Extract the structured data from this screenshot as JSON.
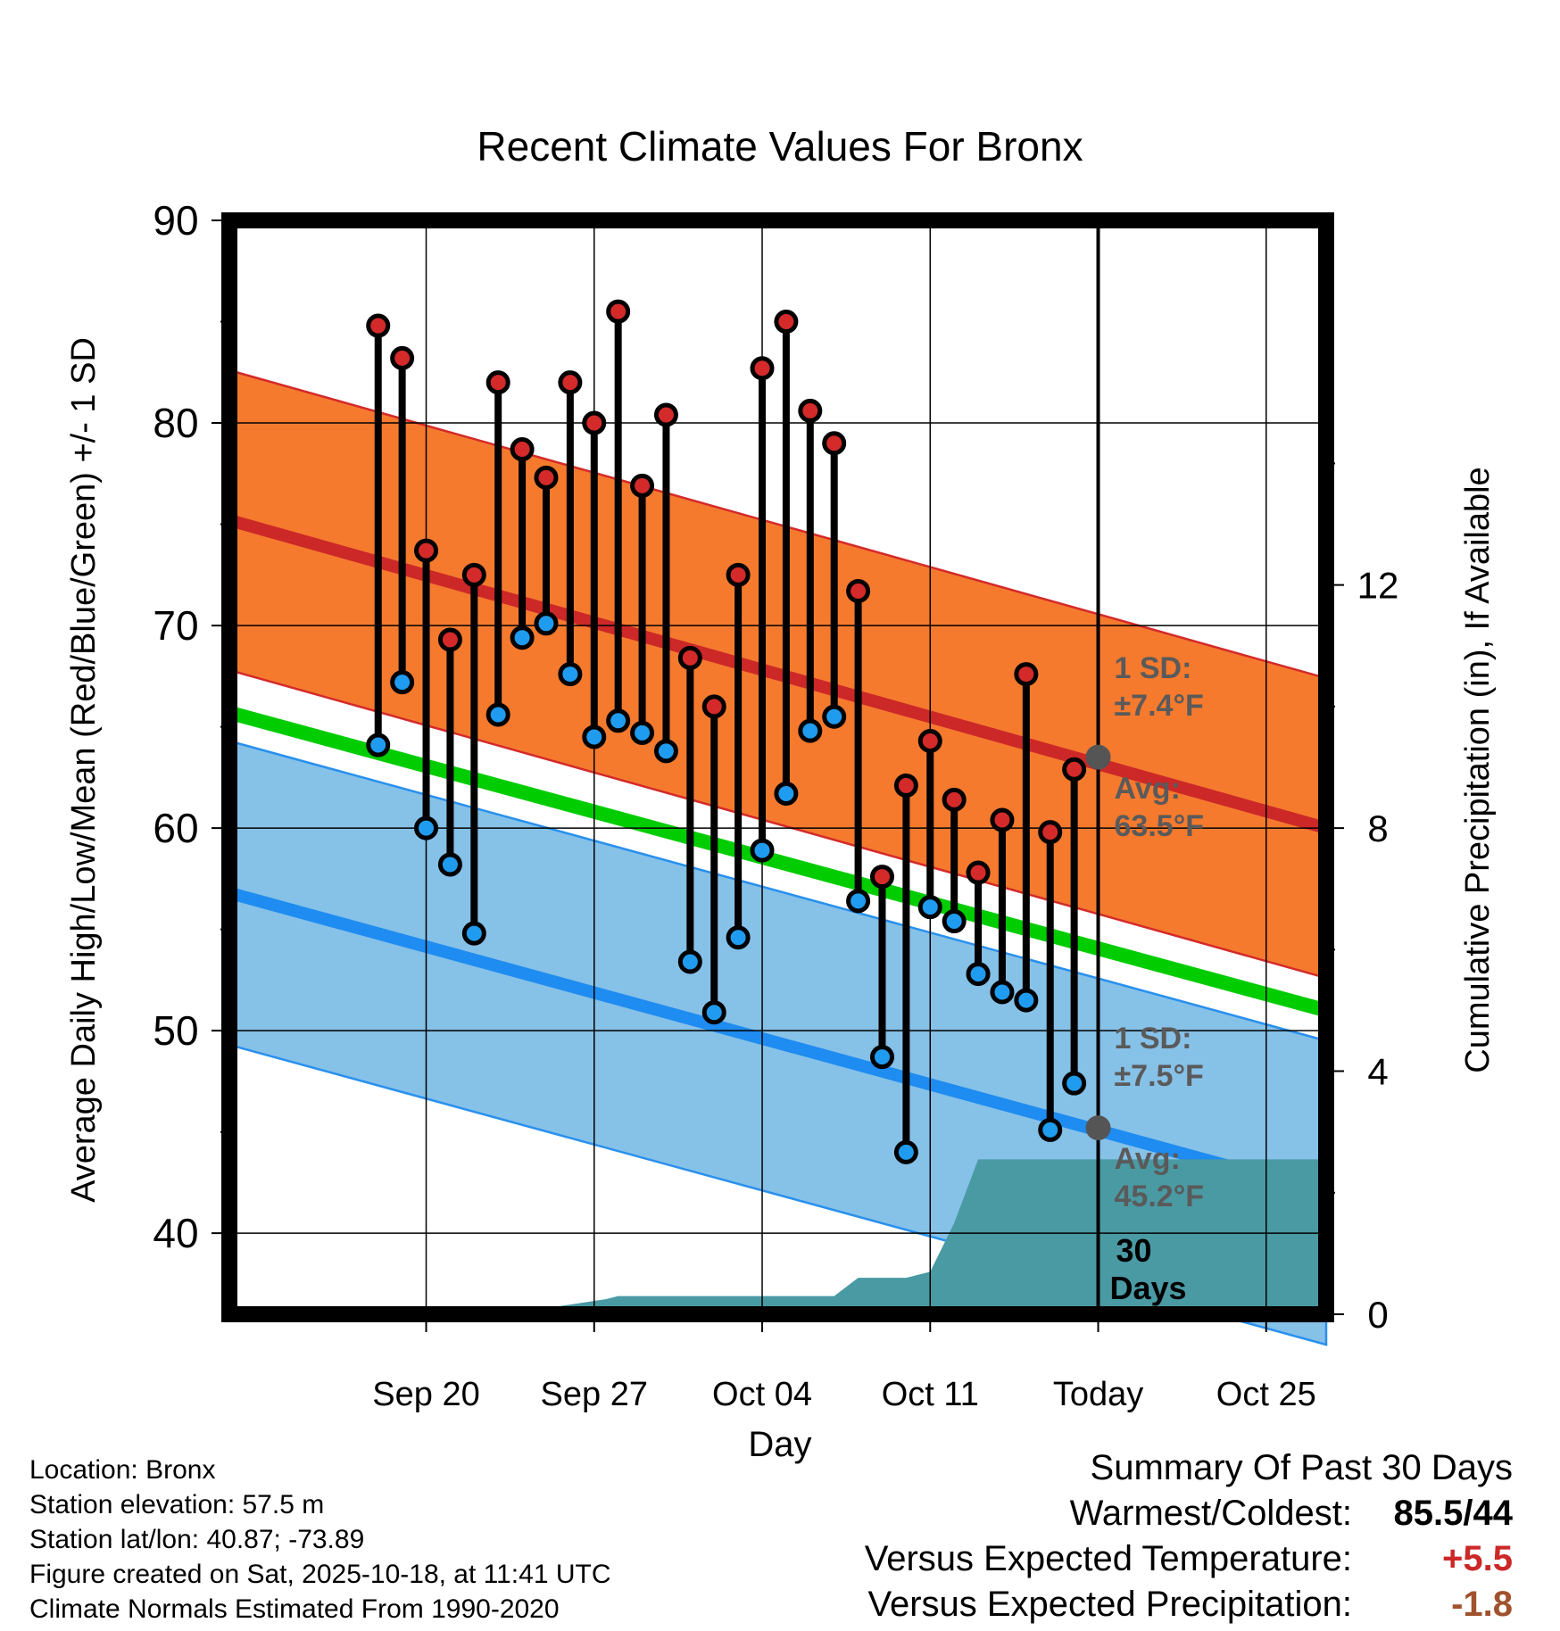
{
  "chart_data": {
    "type": "line",
    "title": "Recent Climate Values For Bronx",
    "xlabel": "Day",
    "ylabel": "Average Daily High/Low/Mean (Red/Blue/Green) +/- 1 SD",
    "y2label": "Cumulative Precipitation (in), If Available",
    "ylim": [
      36,
      90
    ],
    "y_ticks": [
      40,
      50,
      60,
      70,
      80,
      90
    ],
    "y2lim": [
      0,
      18
    ],
    "y2_ticks": [
      0,
      4,
      8,
      12
    ],
    "x_range_days": [
      -36.2,
      9.5
    ],
    "x_ticks": [
      {
        "day": -28,
        "label": "Sep 20"
      },
      {
        "day": -21,
        "label": "Sep 27"
      },
      {
        "day": -14,
        "label": "Oct 04"
      },
      {
        "day": -7,
        "label": "Oct 11"
      },
      {
        "day": 0,
        "label": "Today"
      },
      {
        "day": 7,
        "label": "Oct 25"
      }
    ],
    "normals": {
      "high_avg": [
        75.2,
        60.0
      ],
      "high_sd": 7.4,
      "low_avg": [
        56.8,
        42.0
      ],
      "low_sd": 7.5,
      "mean_avg": [
        65.7,
        51.0
      ],
      "span_days": [
        -36.2,
        9.5
      ]
    },
    "series": [
      {
        "name": "Daily High",
        "color": "#d42a2a",
        "values": [
          84.8,
          83.2,
          73.7,
          69.3,
          72.5,
          82.0,
          78.7,
          77.3,
          82.0,
          80.0,
          85.5,
          76.9,
          80.4,
          68.4,
          66.0,
          72.5,
          82.7,
          85.0,
          80.6,
          79.0,
          71.7,
          57.6,
          62.1,
          64.3,
          61.4,
          57.8,
          60.4,
          67.6,
          59.8,
          62.9
        ]
      },
      {
        "name": "Daily Low",
        "color": "#1f9cf0",
        "values": [
          64.1,
          67.2,
          60.0,
          58.2,
          54.8,
          65.6,
          69.4,
          70.1,
          67.6,
          64.5,
          65.3,
          64.7,
          63.8,
          53.4,
          50.9,
          54.6,
          58.9,
          61.7,
          64.8,
          65.5,
          56.4,
          48.7,
          44.0,
          56.1,
          55.4,
          52.8,
          51.9,
          51.5,
          45.1,
          47.4
        ]
      }
    ],
    "days": [
      -30,
      -29,
      -28,
      -27,
      -26,
      -25,
      -24,
      -23,
      -22,
      -21,
      -20,
      -19,
      -18,
      -17,
      -16,
      -15,
      -14,
      -13,
      -12,
      -11,
      -10,
      -9,
      -8,
      -7,
      -6,
      -5,
      -4,
      -3,
      -2,
      -1
    ],
    "precip_cumulative": {
      "days": [
        -36.2,
        -24,
        -23,
        -20.5,
        -20,
        -11,
        -10,
        -8,
        -7,
        -6,
        -5,
        9.5
      ],
      "values": [
        0,
        0,
        0.1,
        0.25,
        0.3,
        0.3,
        0.6,
        0.6,
        0.7,
        1.5,
        2.55,
        2.55
      ]
    },
    "annotations": {
      "high_sd_label": "1 SD:",
      "high_sd_value": "±7.4°F",
      "high_avg_label": "Avg:",
      "high_avg_value": "63.5°F",
      "low_sd_label": "1 SD:",
      "low_sd_value": "±7.5°F",
      "low_avg_label": "Avg:",
      "low_avg_value": "45.2°F",
      "window_label_1": "30",
      "window_label_2": "Days"
    },
    "colors": {
      "high_band": "#f57a2e",
      "high_band_edge": "#d42a2a",
      "high_line": "#cc2828",
      "low_band": "#86c1e8",
      "low_band_edge": "#2890ee",
      "low_line": "#1e8cf0",
      "mean_line": "#00cc00",
      "precip": "#4a9aa4",
      "today_marker": "#555555",
      "annotation_text": "#5a5a5a"
    }
  },
  "info": {
    "location": "Location: Bronx",
    "elevation": "Station elevation: 57.5 m",
    "latlon": "Station lat/lon: 40.87; -73.89",
    "created": "Figure created on Sat, 2025-10-18, at 11:41 UTC",
    "normals": "Climate Normals Estimated From 1990-2020"
  },
  "summary": {
    "title": "Summary Of Past 30 Days",
    "warm_cold_label": "Warmest/Coldest:",
    "warm_cold_value": "85.5/44",
    "temp_label": "Versus Expected Temperature:",
    "temp_value": "+5.5",
    "temp_color": "#cc2828",
    "precip_label": "Versus Expected Precipitation:",
    "precip_value": "-1.8",
    "precip_color": "#a0522d"
  }
}
